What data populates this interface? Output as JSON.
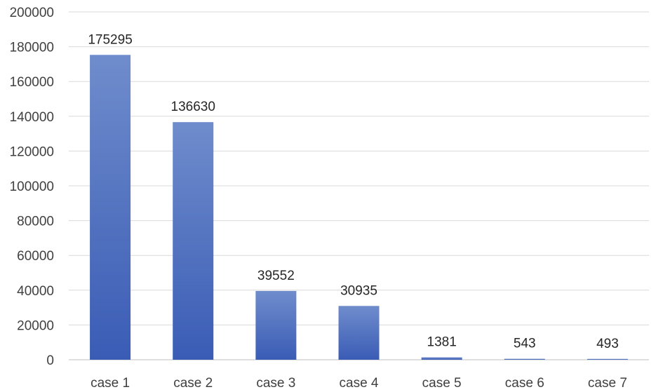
{
  "chart_data": {
    "type": "bar",
    "title": "",
    "xlabel": "",
    "ylabel": "",
    "categories": [
      "case 1",
      "case 2",
      "case 3",
      "case 4",
      "case 5",
      "case 6",
      "case 7"
    ],
    "values": [
      175295,
      136630,
      39552,
      30935,
      1381,
      543,
      493
    ],
    "value_labels": [
      "175295",
      "136630",
      "39552",
      "30935",
      "1381",
      "543",
      "493"
    ],
    "ylim": [
      0,
      200000
    ],
    "yticks": [
      0,
      20000,
      40000,
      60000,
      80000,
      100000,
      120000,
      140000,
      160000,
      180000,
      200000
    ],
    "ytick_labels": [
      "0",
      "20000",
      "40000",
      "60000",
      "80000",
      "100000",
      "120000",
      "140000",
      "160000",
      "180000",
      "200000"
    ],
    "grid": true,
    "legend": "none",
    "bar_color_top": "#6f8ccc",
    "bar_color_bottom": "#3a5cb5"
  }
}
